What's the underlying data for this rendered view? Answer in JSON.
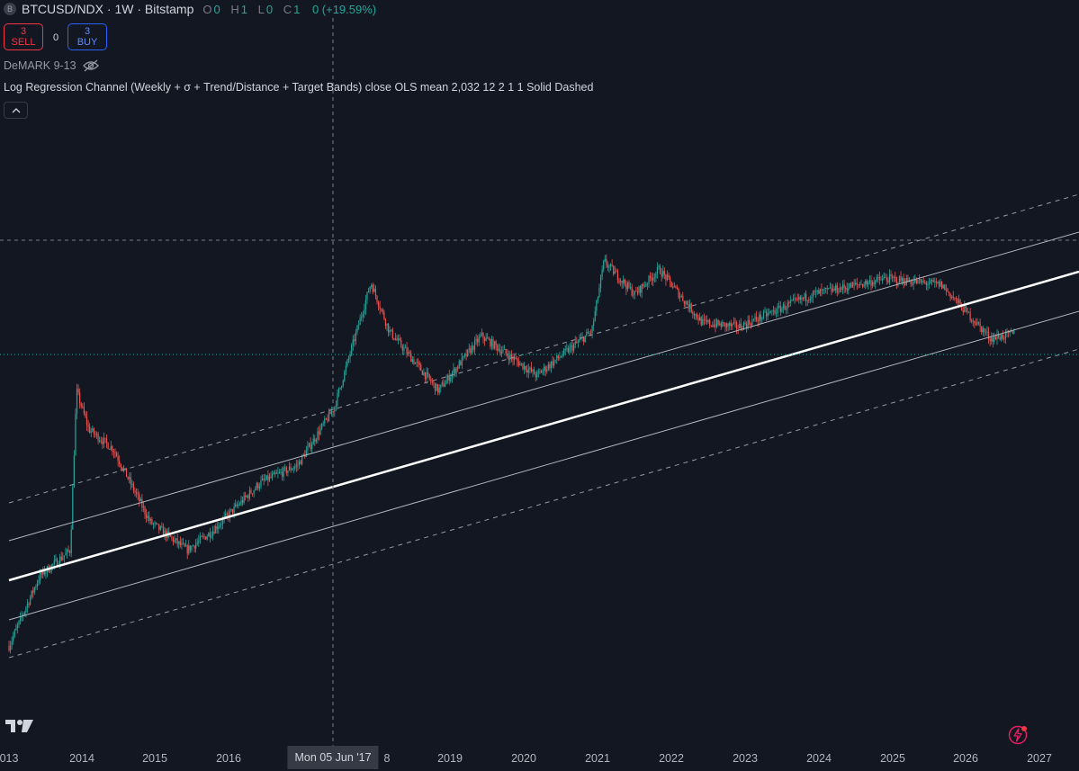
{
  "symbol": {
    "icon_letter": "B",
    "title": "BTCUSD/NDX · 1W · Bitstamp",
    "ohlc": [
      {
        "label": "O",
        "value": "0"
      },
      {
        "label": "H",
        "value": "1"
      },
      {
        "label": "L",
        "value": "0"
      },
      {
        "label": "C",
        "value": "1"
      }
    ],
    "change": "0 (+19.59%)"
  },
  "trade": {
    "sell_count": "3",
    "sell_label": "SELL",
    "spread": "0",
    "buy_count": "3",
    "buy_label": "BUY"
  },
  "indicators": {
    "demark": "DeMARK 9-13",
    "regression": "Log Regression Channel (Weekly + σ + Trend/Distance + Target Bands) close OLS mean 2,032 12 2 1 1 Solid Dashed"
  },
  "x_axis": {
    "labels": [
      "013",
      "2014",
      "2015",
      "2016",
      "8",
      "2019",
      "2020",
      "2021",
      "2022",
      "2023",
      "2024",
      "2025",
      "2026",
      "2027"
    ],
    "crosshair_label": "Mon 05 Jun '17"
  },
  "icons": {
    "symbol": "bitcoin-icon",
    "eye": "eye-hidden-icon",
    "collapse": "chevron-up-icon",
    "logo": "tradingview-logo",
    "bolt": "lightning-icon"
  },
  "colors": {
    "background": "#131722",
    "up": "#26a69a",
    "down": "#ef5350",
    "sell": "#f23645",
    "buy": "#2962ff",
    "regression_mean": "#ffffff",
    "channel": "#b2b5be"
  },
  "chart_data": {
    "type": "candlestick",
    "interval": "1W",
    "price_path": [
      [
        "2013-01",
        0.01
      ],
      [
        "2013-06",
        0.03
      ],
      [
        "2013-11",
        0.045
      ],
      [
        "2013-12",
        0.55
      ],
      [
        "2014-02",
        0.3
      ],
      [
        "2014-06",
        0.22
      ],
      [
        "2014-12",
        0.07
      ],
      [
        "2015-06",
        0.045
      ],
      [
        "2015-10",
        0.06
      ],
      [
        "2016-06",
        0.13
      ],
      [
        "2016-12",
        0.17
      ],
      [
        "2017-06",
        0.42
      ],
      [
        "2017-12",
        3.0
      ],
      [
        "2018-03",
        1.4
      ],
      [
        "2018-11",
        0.55
      ],
      [
        "2019-06",
        1.3
      ],
      [
        "2020-03",
        0.7
      ],
      [
        "2020-12",
        1.4
      ],
      [
        "2021-02",
        4.2
      ],
      [
        "2021-07",
        2.5
      ],
      [
        "2021-11",
        3.7
      ],
      [
        "2022-06",
        1.6
      ],
      [
        "2022-12",
        1.5
      ],
      [
        "2023-12",
        2.5
      ],
      [
        "2024-12",
        3.2
      ],
      [
        "2025-09",
        2.9
      ],
      [
        "2026-05",
        1.25
      ],
      [
        "2026-09",
        1.35
      ]
    ],
    "regression": {
      "method": "close OLS mean",
      "end_year": 2032,
      "line_style": "solid mean, dashed outer bands"
    }
  }
}
